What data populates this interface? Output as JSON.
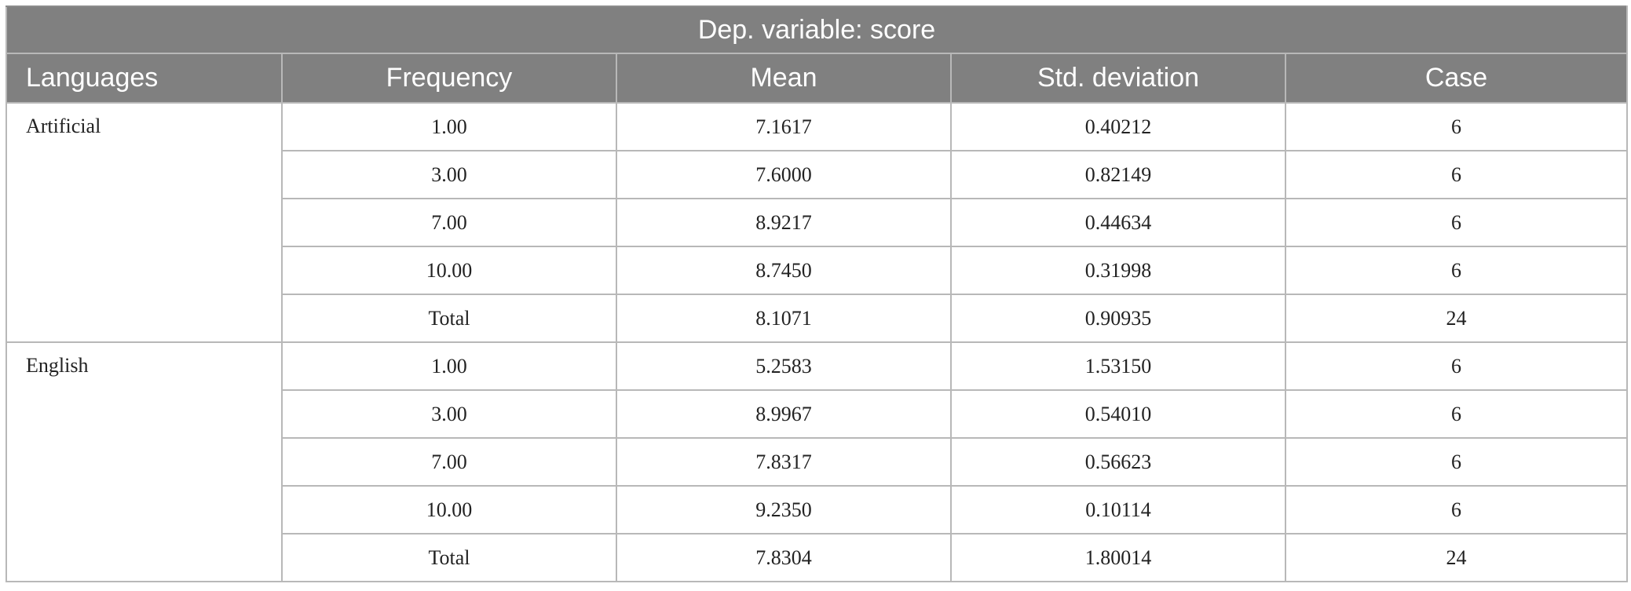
{
  "table": {
    "title": "Dep. variable: score",
    "headers": [
      "Languages",
      "Frequency",
      "Mean",
      "Std. deviation",
      "Case"
    ],
    "groups": [
      {
        "language": "Artificial",
        "rows": [
          {
            "frequency": "1.00",
            "mean": "7.1617",
            "sd": "0.40212",
            "case": "6"
          },
          {
            "frequency": "3.00",
            "mean": "7.6000",
            "sd": "0.82149",
            "case": "6"
          },
          {
            "frequency": "7.00",
            "mean": "8.9217",
            "sd": "0.44634",
            "case": "6"
          },
          {
            "frequency": "10.00",
            "mean": "8.7450",
            "sd": "0.31998",
            "case": "6"
          },
          {
            "frequency": "Total",
            "mean": "8.1071",
            "sd": "0.90935",
            "case": "24"
          }
        ]
      },
      {
        "language": "English",
        "rows": [
          {
            "frequency": "1.00",
            "mean": "5.2583",
            "sd": "1.53150",
            "case": "6"
          },
          {
            "frequency": "3.00",
            "mean": "8.9967",
            "sd": "0.54010",
            "case": "6"
          },
          {
            "frequency": "7.00",
            "mean": "7.8317",
            "sd": "0.56623",
            "case": "6"
          },
          {
            "frequency": "10.00",
            "mean": "9.2350",
            "sd": "0.10114",
            "case": "6"
          },
          {
            "frequency": "Total",
            "mean": "7.8304",
            "sd": "1.80014",
            "case": "24"
          }
        ]
      }
    ]
  }
}
